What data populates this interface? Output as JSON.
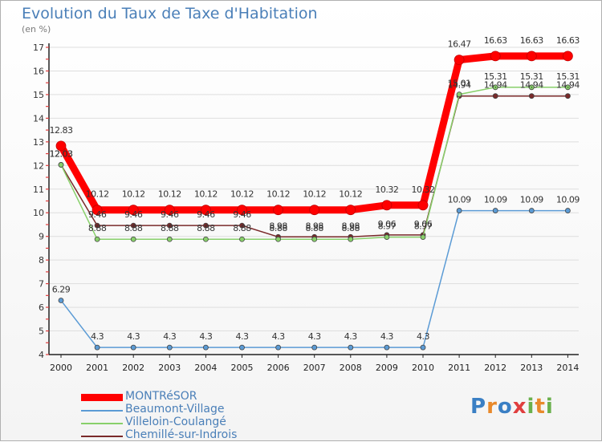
{
  "title": "Evolution du Taux de Taxe d'Habitation",
  "subtitle": "(en %)",
  "brand": {
    "letters": [
      {
        "ch": "P",
        "color": "#3a7fc4"
      },
      {
        "ch": "r",
        "color": "#e8892b"
      },
      {
        "ch": "o",
        "color": "#3a7fc4"
      },
      {
        "ch": "x",
        "color": "#e03e3e"
      },
      {
        "ch": "i",
        "color": "#6ab04c"
      },
      {
        "ch": "t",
        "color": "#e8892b"
      },
      {
        "ch": "i",
        "color": "#6ab04c"
      }
    ]
  },
  "chart_data": {
    "type": "line",
    "title": "Evolution du Taux de Taxe d'Habitation",
    "ylabel": "(en %)",
    "xlabel": "",
    "x": [
      "2000",
      "2001",
      "2002",
      "2003",
      "2004",
      "2005",
      "2006",
      "2007",
      "2008",
      "2009",
      "2010",
      "2011",
      "2012",
      "2013",
      "2014"
    ],
    "ylim": [
      4,
      17
    ],
    "yticks": [
      4,
      5,
      6,
      7,
      8,
      9,
      10,
      11,
      12,
      13,
      14,
      15,
      16,
      17
    ],
    "grid": true,
    "legend_position": "bottom-left",
    "series": [
      {
        "name": "MONTRéSOR",
        "color": "#ff0000",
        "width": 9,
        "marker_radius": 6,
        "values": [
          12.83,
          10.12,
          10.12,
          10.12,
          10.12,
          10.12,
          10.12,
          10.12,
          10.12,
          10.32,
          10.32,
          16.47,
          16.63,
          16.63,
          16.63
        ],
        "labels": [
          "12.83",
          "10.12",
          "10.12",
          "10.12",
          "10.12",
          "10.12",
          "10.12",
          "10.12",
          "10.12",
          "10.32",
          "10.32",
          "16.47",
          "16.63",
          "16.63",
          "16.63"
        ],
        "label_offset": -16
      },
      {
        "name": "Beaumont-Village",
        "color": "#5b9bd5",
        "width": 1.5,
        "marker_radius": 3,
        "values": [
          6.29,
          4.3,
          4.3,
          4.3,
          4.3,
          4.3,
          4.3,
          4.3,
          4.3,
          4.3,
          4.3,
          10.09,
          10.09,
          10.09,
          10.09
        ],
        "labels": [
          "6.29",
          "4.3",
          "4.3",
          "4.3",
          "4.3",
          "4.3",
          "4.3",
          "4.3",
          "4.3",
          "4.3",
          "4.3",
          "10.09",
          "10.09",
          "10.09",
          "10.09"
        ],
        "label_offset": -10
      },
      {
        "name": "Villeloin-Coulangé",
        "color": "#88d06a",
        "width": 1.5,
        "marker_radius": 3,
        "values": [
          12.03,
          8.88,
          8.88,
          8.88,
          8.88,
          8.88,
          8.88,
          8.88,
          8.88,
          8.97,
          8.97,
          15.01,
          15.31,
          15.31,
          15.31
        ],
        "labels": [
          "12.03",
          "8.88",
          "8.88",
          "8.88",
          "8.88",
          "8.88",
          "8.88",
          "8.88",
          "8.88",
          "8.97",
          "8.97",
          "15.01",
          "15.31",
          "15.31",
          "15.31"
        ],
        "label_offset": -10
      },
      {
        "name": "Chemillé-sur-Indrois",
        "color": "#7a2a2a",
        "width": 1.5,
        "marker_radius": 3,
        "values": [
          12.03,
          9.46,
          9.46,
          9.46,
          9.46,
          9.46,
          8.98,
          8.98,
          8.98,
          9.06,
          9.06,
          14.94,
          14.94,
          14.94,
          14.94
        ],
        "labels": [
          "12.03",
          "9.46",
          "9.46",
          "9.46",
          "9.46",
          "9.46",
          "8.98",
          "8.98",
          "8.98",
          "9.06",
          "9.06",
          "14.94",
          "14.94",
          "14.94",
          "14.94"
        ],
        "label_offset": -10
      }
    ]
  }
}
